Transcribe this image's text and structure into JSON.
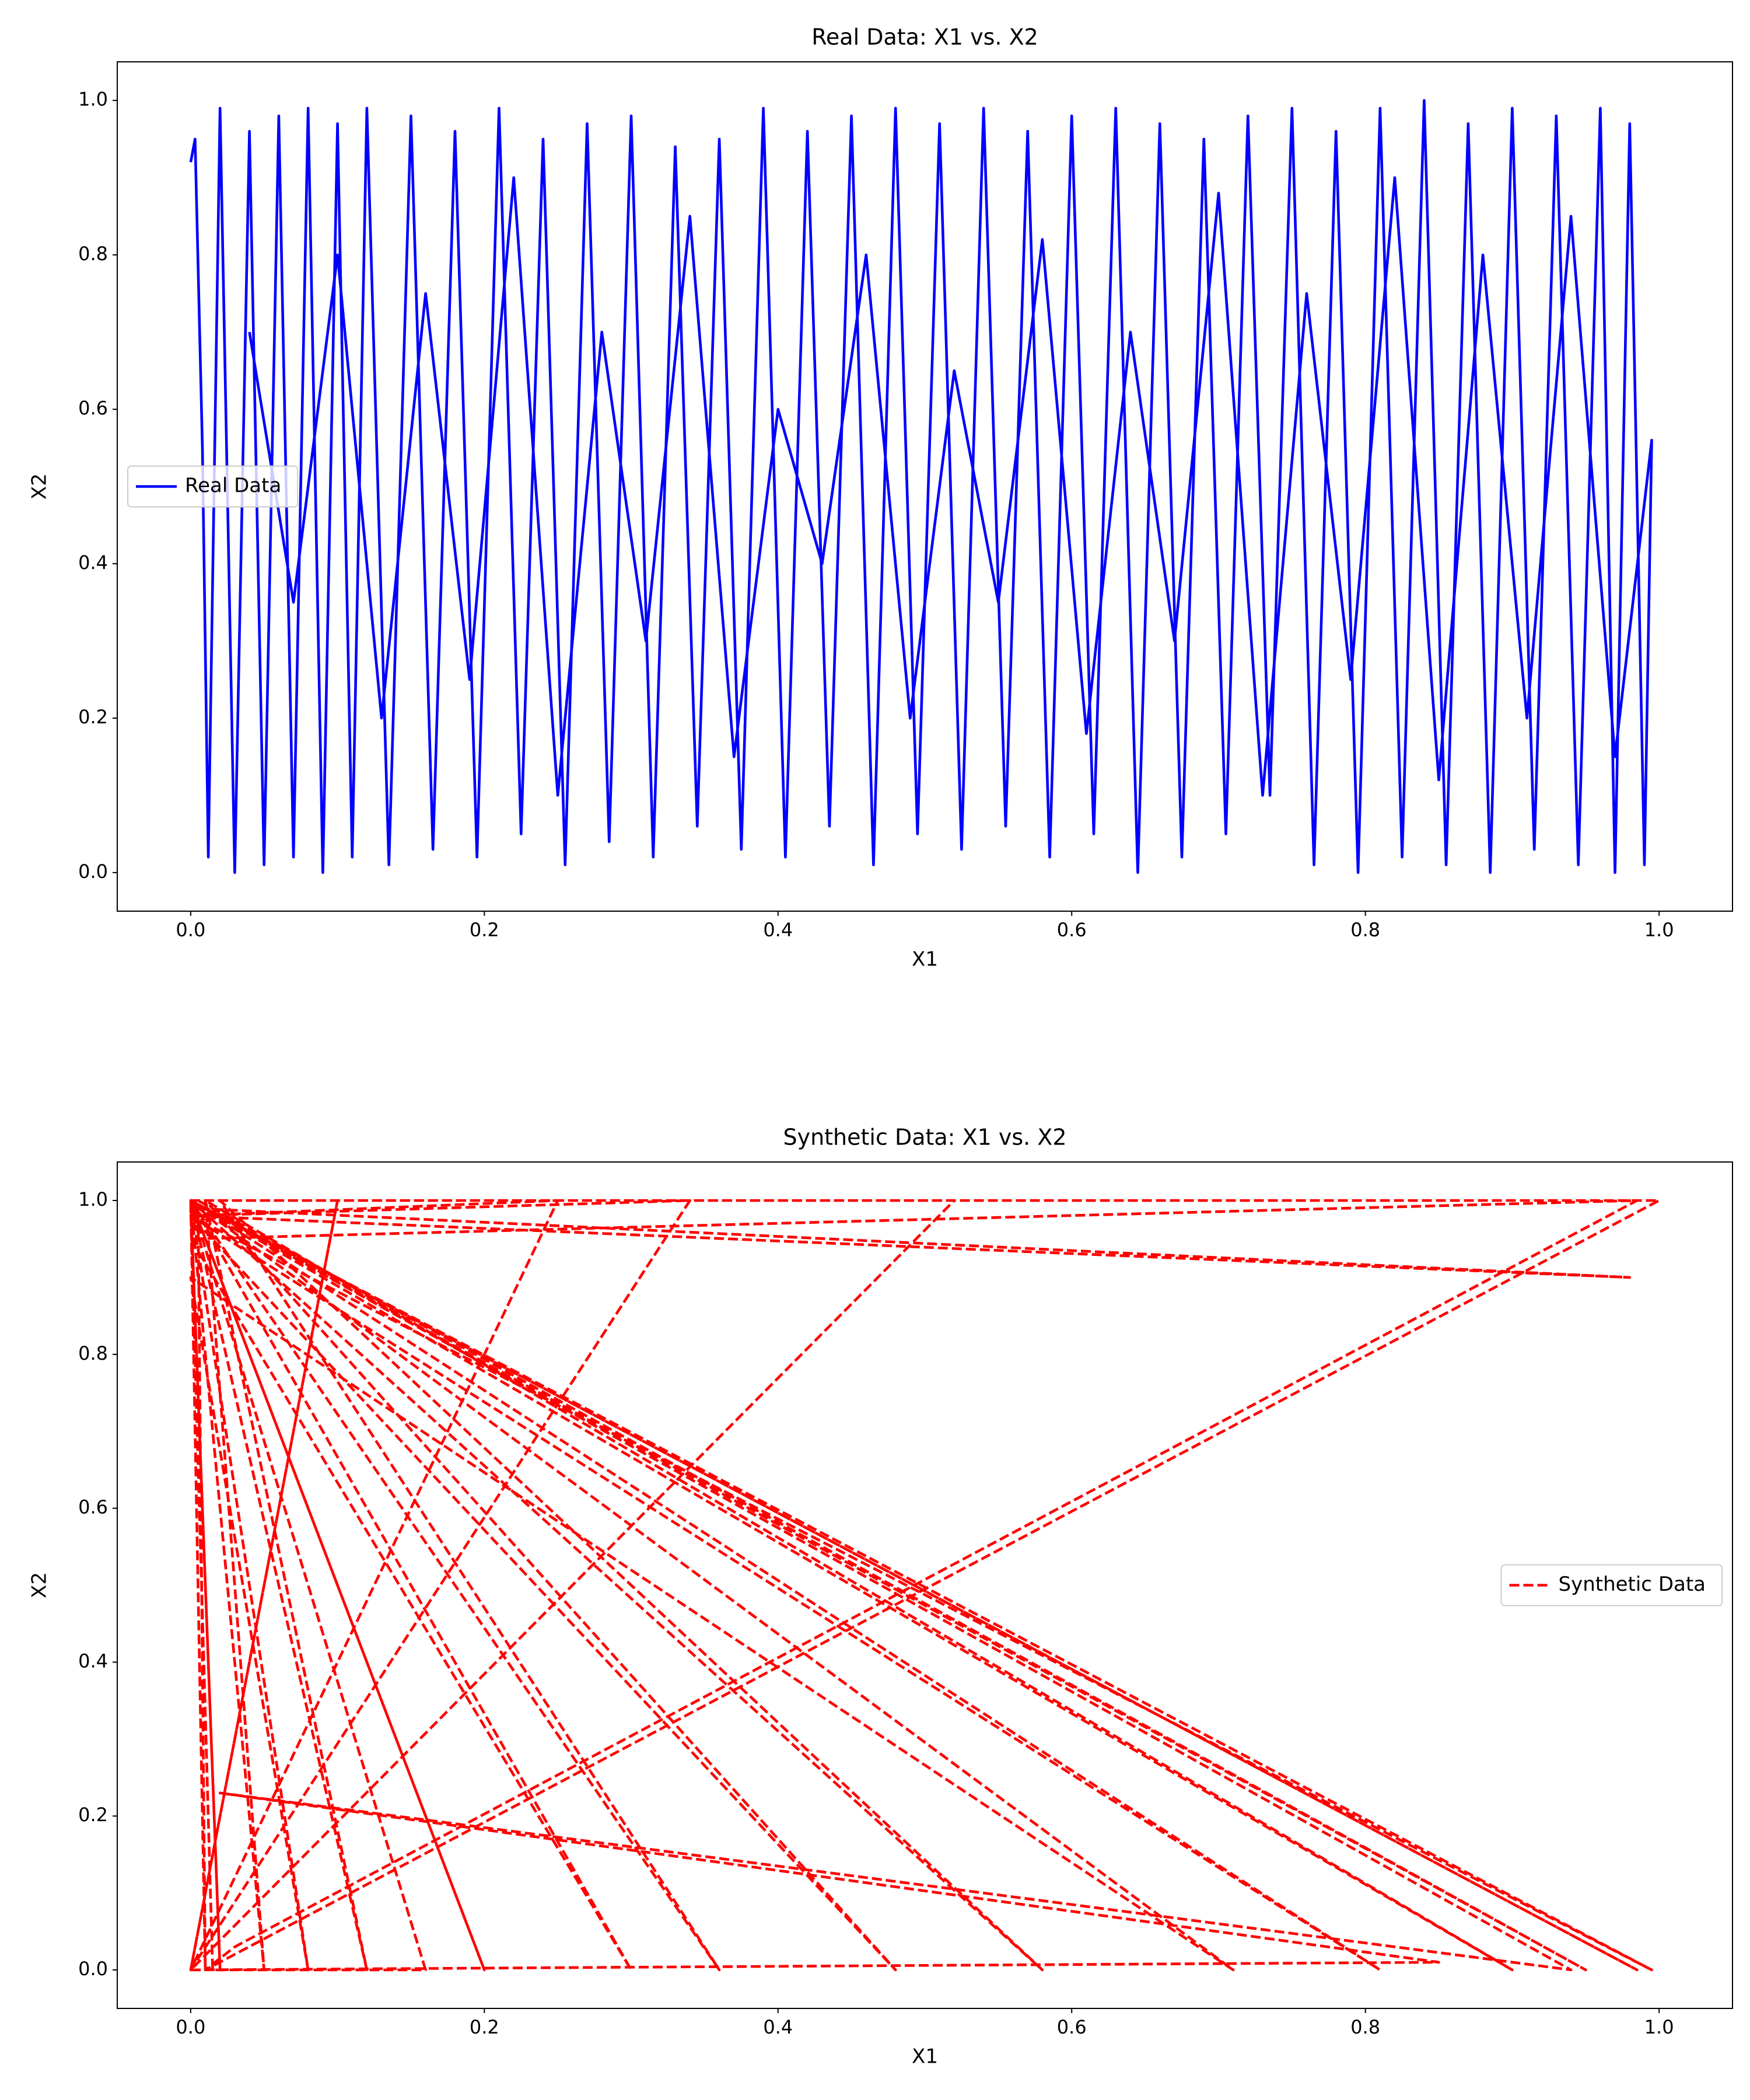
{
  "chart_data": [
    {
      "type": "line",
      "title": "Real Data: X1 vs. X2",
      "xlabel": "X1",
      "ylabel": "X2",
      "xlim": [
        -0.05,
        1.05
      ],
      "ylim": [
        -0.05,
        1.05
      ],
      "xticks": [
        {
          "value": 0,
          "label": "0.0"
        },
        {
          "value": 0.2,
          "label": "0.2"
        },
        {
          "value": 0.4,
          "label": "0.4"
        },
        {
          "value": 0.6,
          "label": "0.6"
        },
        {
          "value": 0.8,
          "label": "0.8"
        },
        {
          "value": 1,
          "label": "1.0"
        }
      ],
      "yticks": [
        {
          "value": 0,
          "label": "0.0"
        },
        {
          "value": 0.2,
          "label": "0.2"
        },
        {
          "value": 0.4,
          "label": "0.4"
        },
        {
          "value": 0.6,
          "label": "0.6"
        },
        {
          "value": 0.8,
          "label": "0.8"
        },
        {
          "value": 1,
          "label": "1.0"
        }
      ],
      "legend_loc": "center left",
      "x": [
        0.0,
        0.003,
        0.008,
        0.012,
        0.02,
        0.03,
        0.04,
        0.05,
        0.06,
        0.07,
        0.08,
        0.09,
        0.1,
        0.11,
        0.12,
        0.135,
        0.15,
        0.165,
        0.18,
        0.195,
        0.21,
        0.225,
        0.24,
        0.255,
        0.27,
        0.285,
        0.3,
        0.315,
        0.33,
        0.345,
        0.36,
        0.375,
        0.39,
        0.405,
        0.42,
        0.435,
        0.45,
        0.465,
        0.48,
        0.495,
        0.51,
        0.525,
        0.54,
        0.555,
        0.57,
        0.585,
        0.6,
        0.615,
        0.63,
        0.645,
        0.66,
        0.675,
        0.69,
        0.705,
        0.72,
        0.735,
        0.75,
        0.765,
        0.78,
        0.795,
        0.81,
        0.825,
        0.84,
        0.855,
        0.87,
        0.885,
        0.9,
        0.915,
        0.93,
        0.945,
        0.96,
        0.97,
        0.98,
        0.99,
        0.995,
        0.97,
        0.94,
        0.91,
        0.88,
        0.85,
        0.82,
        0.79,
        0.76,
        0.73,
        0.7,
        0.67,
        0.64,
        0.61,
        0.58,
        0.55,
        0.52,
        0.49,
        0.46,
        0.43,
        0.4,
        0.37,
        0.34,
        0.31,
        0.28,
        0.25,
        0.22,
        0.19,
        0.16,
        0.13,
        0.1,
        0.07,
        0.04
      ],
      "series": [
        {
          "name": "Real Data",
          "color": "#0000ff",
          "linestyle": "solid",
          "values": [
            0.92,
            0.95,
            0.55,
            0.02,
            0.99,
            0.0,
            0.96,
            0.01,
            0.98,
            0.02,
            0.99,
            0.0,
            0.97,
            0.02,
            0.99,
            0.01,
            0.98,
            0.03,
            0.96,
            0.02,
            0.99,
            0.05,
            0.95,
            0.01,
            0.97,
            0.04,
            0.98,
            0.02,
            0.94,
            0.06,
            0.95,
            0.03,
            0.99,
            0.02,
            0.96,
            0.06,
            0.98,
            0.01,
            0.99,
            0.05,
            0.97,
            0.03,
            0.99,
            0.06,
            0.96,
            0.02,
            0.98,
            0.05,
            0.99,
            0.0,
            0.97,
            0.02,
            0.95,
            0.05,
            0.98,
            0.1,
            0.99,
            0.01,
            0.96,
            0.0,
            0.99,
            0.02,
            1.0,
            0.01,
            0.97,
            0.0,
            0.99,
            0.03,
            0.98,
            0.01,
            0.99,
            0.0,
            0.97,
            0.01,
            0.56,
            0.15,
            0.85,
            0.2,
            0.8,
            0.12,
            0.9,
            0.25,
            0.75,
            0.1,
            0.88,
            0.3,
            0.7,
            0.18,
            0.82,
            0.35,
            0.65,
            0.2,
            0.8,
            0.4,
            0.6,
            0.15,
            0.85,
            0.3,
            0.7,
            0.1,
            0.9,
            0.25,
            0.75,
            0.2,
            0.8,
            0.35,
            0.7
          ]
        }
      ]
    },
    {
      "type": "line",
      "title": "Synthetic Data: X1 vs. X2",
      "xlabel": "X1",
      "ylabel": "X2",
      "xlim": [
        -0.05,
        1.05
      ],
      "ylim": [
        -0.05,
        1.05
      ],
      "xticks": [
        {
          "value": 0,
          "label": "0.0"
        },
        {
          "value": 0.2,
          "label": "0.2"
        },
        {
          "value": 0.4,
          "label": "0.4"
        },
        {
          "value": 0.6,
          "label": "0.6"
        },
        {
          "value": 0.8,
          "label": "0.8"
        },
        {
          "value": 1,
          "label": "1.0"
        }
      ],
      "yticks": [
        {
          "value": 0,
          "label": "0.0"
        },
        {
          "value": 0.2,
          "label": "0.2"
        },
        {
          "value": 0.4,
          "label": "0.4"
        },
        {
          "value": 0.6,
          "label": "0.6"
        },
        {
          "value": 0.8,
          "label": "0.8"
        },
        {
          "value": 1,
          "label": "1.0"
        }
      ],
      "legend_loc": "center right",
      "x": [
        0.0,
        0.01,
        0.005,
        0.95,
        0.0,
        0.02,
        0.0,
        1.0,
        0.01,
        0.03,
        0.985,
        0.0,
        0.3,
        0.0,
        0.985,
        0.0,
        0.05,
        0.01,
        0.48,
        0.0,
        0.995,
        0.0,
        0.08,
        0.0,
        0.71,
        0.0,
        0.12,
        0.01,
        0.9,
        0.0,
        0.2,
        0.0,
        0.36,
        0.02,
        0.58,
        0.0,
        0.81,
        0.0,
        0.34,
        0.0,
        0.1,
        0.0,
        0.25,
        0.0,
        0.98,
        0.0,
        0.015,
        0.16,
        0.0,
        0.94,
        0.02,
        0.85,
        0.0,
        0.52,
        0.0
      ],
      "series": [
        {
          "name": "Synthetic Data",
          "color": "#ff0000",
          "linestyle": "dashed",
          "values": [
            1,
            0,
            1,
            0,
            1,
            0,
            1,
            1,
            0,
            0.03,
            1,
            0.95,
            0,
            1,
            0,
            1,
            0,
            1,
            0,
            0.98,
            0,
            1,
            0,
            0.9,
            0,
            1,
            0,
            1,
            0,
            1,
            0,
            1,
            0,
            1,
            0,
            1,
            0,
            0.98,
            1,
            0,
            1,
            0,
            1,
            0.98,
            0.9,
            0.99,
            0,
            0,
            1,
            0,
            0.23,
            0.01,
            0,
            1,
            1
          ]
        }
      ]
    }
  ]
}
